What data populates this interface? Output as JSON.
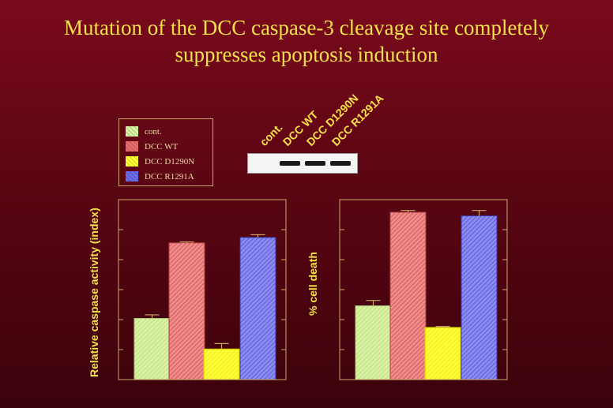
{
  "title": {
    "line1": "Mutation of the DCC caspase-3 cleavage site completely",
    "line2": "suppresses apoptosis induction"
  },
  "legend": {
    "items": [
      {
        "label": "cont.",
        "color": "#d9f2a3"
      },
      {
        "label": "DCC WT",
        "color": "#e86d6d"
      },
      {
        "label": "DCC D1290N",
        "color": "#ffff33"
      },
      {
        "label": "DCC R1291A",
        "color": "#6b6be8"
      }
    ]
  },
  "blot": {
    "lanes": [
      "cont.",
      "DCC WT",
      "DCC D1290N",
      "DCC R1291A"
    ],
    "band_present": [
      false,
      true,
      true,
      true
    ]
  },
  "colors": {
    "title": "#f2e24a",
    "axis": "#c9a86a",
    "background": "#6a0818"
  },
  "chart_data": [
    {
      "type": "bar",
      "ylabel": "Relative caspase activity (index)",
      "xlabel": "",
      "categories": [
        "cont.",
        "DCC WT",
        "DCC D1290N",
        "DCC R1291A"
      ],
      "values": [
        0.34,
        0.76,
        0.17,
        0.79
      ],
      "errors": [
        0.02,
        0.005,
        0.03,
        0.015
      ],
      "ylim": [
        0,
        1
      ]
    },
    {
      "type": "bar",
      "ylabel": "% cell death",
      "xlabel": "",
      "categories": [
        "cont.",
        "DCC WT",
        "DCC D1290N",
        "DCC R1291A"
      ],
      "values": [
        0.41,
        0.93,
        0.29,
        0.91
      ],
      "errors": [
        0.03,
        0.01,
        0.005,
        0.03
      ],
      "ylim": [
        0,
        1
      ]
    }
  ]
}
